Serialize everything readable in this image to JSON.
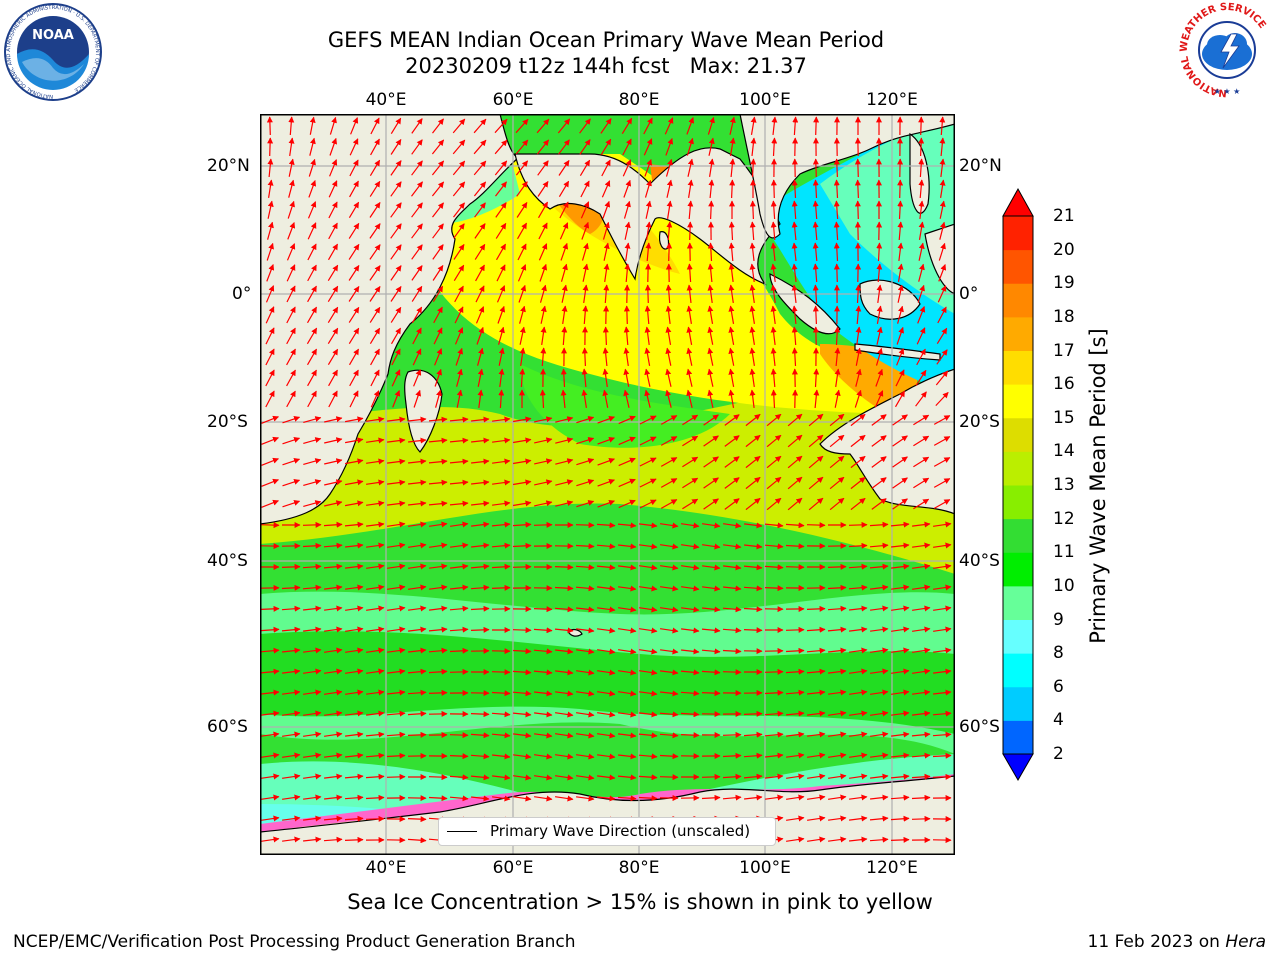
{
  "title": {
    "line1": "GEFS MEAN Indian Ocean Primary Wave Mean Period",
    "line2": "20230209 t12z 144h fcst   Max: 21.37"
  },
  "map": {
    "lon_labels": [
      "40°E",
      "60°E",
      "80°E",
      "100°E",
      "120°E"
    ],
    "lat_labels": [
      "20°N",
      "0°",
      "20°S",
      "40°S",
      "60°S"
    ],
    "colors": {
      "land": "#eeeee0",
      "grid": "#b0b0b0",
      "arrow": "#ff0000",
      "coast": "#000000"
    }
  },
  "colorbar": {
    "label": "Primary Wave Mean Period [s]",
    "ticks": [
      "2",
      "4",
      "6",
      "8",
      "9",
      "10",
      "11",
      "12",
      "13",
      "14",
      "15",
      "16",
      "17",
      "18",
      "19",
      "20",
      "21"
    ],
    "colors": [
      "#0000ff",
      "#0066ff",
      "#00ccff",
      "#00ffff",
      "#66ffff",
      "#66ff99",
      "#00ee00",
      "#33dd33",
      "#88ee00",
      "#bbee00",
      "#dddd00",
      "#ffff00",
      "#ffdd00",
      "#ffaa00",
      "#ff8800",
      "#ff5500",
      "#ff2200",
      "#ff0000"
    ],
    "extend": "both"
  },
  "legend": {
    "label": "Primary Wave Direction (unscaled)",
    "icon": "black-line-icon"
  },
  "subtitle": "Sea Ice Concentration > 15% is shown in pink to yellow",
  "footer": {
    "left": "NCEP/EMC/Verification Post Processing Product Generation Branch",
    "date": "11 Feb 2023 on ",
    "host": "Hera"
  },
  "logos": {
    "noaa": {
      "text": "NOAA",
      "ring": "NATIONAL OCEANIC AND ATMOSPHERIC ADMINISTRATION · U.S. DEPARTMENT OF COMMERCE"
    },
    "nws": {
      "ring": "NATIONAL WEATHER SERVICE"
    }
  }
}
